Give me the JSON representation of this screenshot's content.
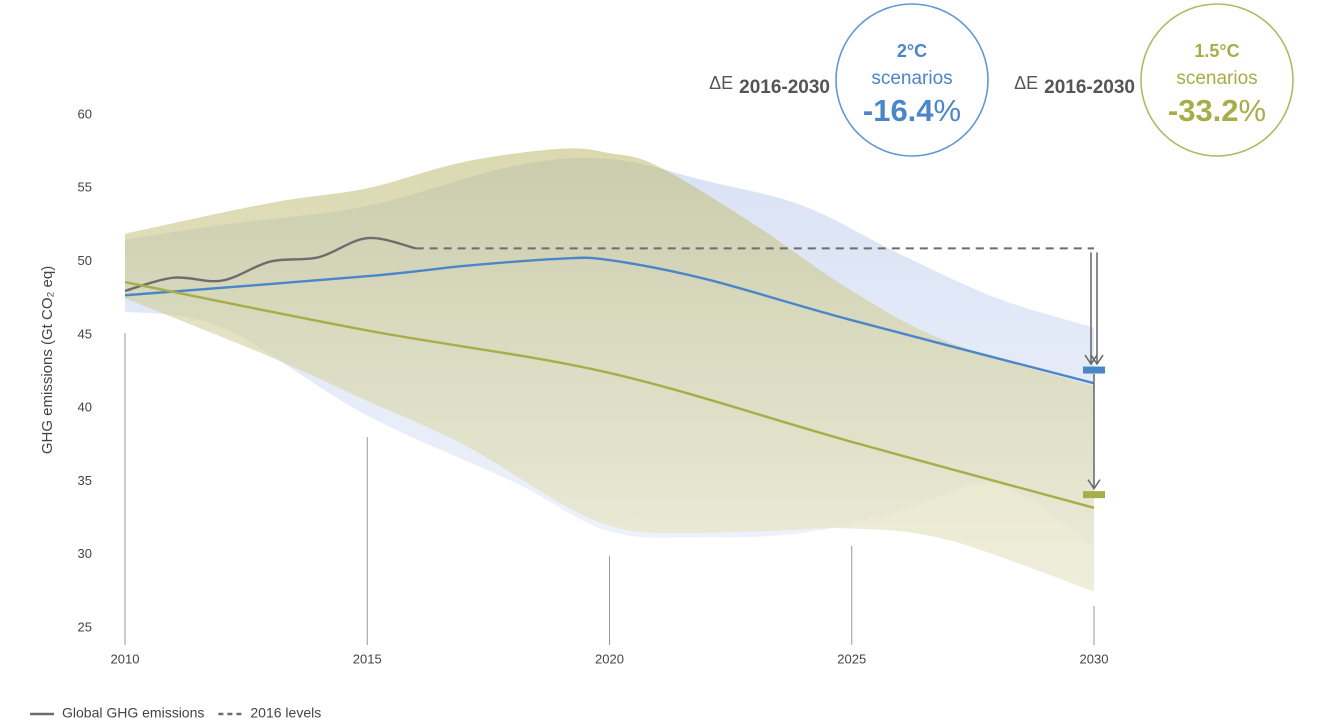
{
  "chart_data": {
    "type": "line",
    "ylabel": "GHG emissions (Gt CO₂ eq)",
    "xlim": [
      2010,
      2030
    ],
    "xticks": [
      2010,
      2015,
      2020,
      2025,
      2030
    ],
    "ylim": [
      25,
      60
    ],
    "yticks": [
      25,
      30,
      35,
      40,
      45,
      50,
      55,
      60
    ],
    "legend": "bottom-left",
    "bands": [
      {
        "color": "#b9cbec",
        "x": [
          2010,
          2012,
          2015,
          2018,
          2020,
          2022,
          2024,
          2026,
          2028,
          2030
        ],
        "upper": [
          51.5,
          52.5,
          53.8,
          56.5,
          57.0,
          55.5,
          53.8,
          50.5,
          47.5,
          45.5
        ],
        "lower": [
          46.6,
          45.5,
          39.5,
          35.0,
          31.6,
          31.2,
          31.5,
          33.0,
          34.8,
          30.5
        ]
      },
      {
        "color": "#bdba70",
        "x": [
          2010,
          2013,
          2015,
          2017,
          2019,
          2020,
          2021,
          2023,
          2025,
          2027,
          2030
        ],
        "upper": [
          51.9,
          54.0,
          55.0,
          56.8,
          57.7,
          57.4,
          56.5,
          52.5,
          48.0,
          44.5,
          41.5
        ],
        "lower": [
          47.5,
          43.5,
          40.5,
          37.5,
          33.5,
          32.0,
          31.5,
          31.6,
          31.8,
          31.0,
          27.5
        ]
      }
    ],
    "series": [
      {
        "name": "Global GHG emissions",
        "color": "#6d6d6d",
        "style": "solid",
        "x": [
          2010,
          2011,
          2012,
          2013,
          2014,
          2015,
          2016
        ],
        "values": [
          48.0,
          48.9,
          48.7,
          50.0,
          50.3,
          51.6,
          50.9
        ]
      },
      {
        "name": "2016 levels",
        "color": "#6d6d6d",
        "style": "dashed",
        "x": [
          2016,
          2030
        ],
        "values": [
          50.9,
          50.9
        ]
      },
      {
        "color": "#4a86c8",
        "style": "solid",
        "x": [
          2010,
          2015,
          2017,
          2019,
          2020,
          2022,
          2025,
          2030
        ],
        "values": [
          47.7,
          49.0,
          49.7,
          50.2,
          50.1,
          48.8,
          46.0,
          41.7
        ]
      },
      {
        "color": "#a7ad48",
        "style": "solid",
        "x": [
          2010,
          2015,
          2020,
          2025,
          2030
        ],
        "values": [
          48.6,
          45.3,
          42.4,
          37.7,
          33.2
        ]
      }
    ],
    "markers": [
      {
        "x": 2030,
        "value": 42.6,
        "color": "#4a86c8"
      },
      {
        "x": 2030,
        "value": 34.1,
        "color": "#a7ad48"
      }
    ],
    "scenario_boxes": [
      {
        "prefix": "ΔE",
        "period": "2016-2030",
        "scenario": "2°C",
        "subtitle": "scenarios",
        "change": -16.4,
        "unit": "%",
        "color": "#4a86c8"
      },
      {
        "prefix": "ΔE",
        "period": "2016-2030",
        "scenario": "1.5°C",
        "subtitle": "scenarios",
        "change": -33.2,
        "unit": "%",
        "color": "#a7ad48"
      }
    ]
  }
}
